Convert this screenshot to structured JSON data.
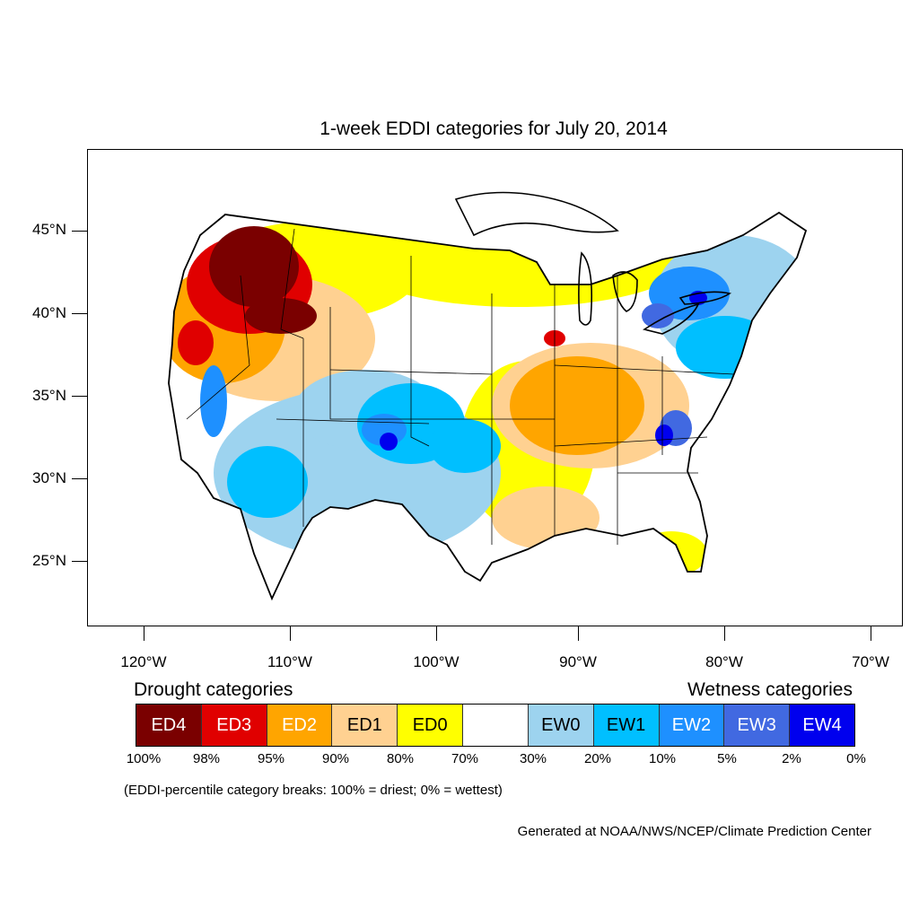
{
  "title": "1-week EDDI categories for July 20, 2014",
  "latitude_labels": [
    "45°N",
    "40°N",
    "35°N",
    "30°N",
    "25°N"
  ],
  "longitude_labels": [
    "120°W",
    "110°W",
    "100°W",
    "90°W",
    "80°W",
    "70°W"
  ],
  "legend": {
    "drought_heading": "Drought categories",
    "wetness_heading": "Wetness categories",
    "categories": [
      {
        "label": "ED4",
        "color": "#7a0000",
        "text_color": "#ffffff"
      },
      {
        "label": "ED3",
        "color": "#e00000",
        "text_color": "#ffffff"
      },
      {
        "label": "ED2",
        "color": "#ffa500",
        "text_color": "#ffffff"
      },
      {
        "label": "ED1",
        "color": "#ffd191",
        "text_color": "#000000"
      },
      {
        "label": "ED0",
        "color": "#ffff00",
        "text_color": "#000000"
      },
      {
        "label": "",
        "color": "#ffffff",
        "text_color": "#000000"
      },
      {
        "label": "EW0",
        "color": "#9dd3ef",
        "text_color": "#000000"
      },
      {
        "label": "EW1",
        "color": "#00bfff",
        "text_color": "#000000"
      },
      {
        "label": "EW2",
        "color": "#1e90ff",
        "text_color": "#ffffff"
      },
      {
        "label": "EW3",
        "color": "#4169e1",
        "text_color": "#ffffff"
      },
      {
        "label": "EW4",
        "color": "#0000ee",
        "text_color": "#ffffff"
      }
    ],
    "breaks": [
      "100%",
      "98%",
      "95%",
      "90%",
      "80%",
      "70%",
      "30%",
      "20%",
      "10%",
      "5%",
      "2%",
      "0%"
    ]
  },
  "note": "(EDDI-percentile category breaks: 100% = driest; 0% = wettest)",
  "credit": "Generated at NOAA/NWS/NCEP/Climate Prediction Center"
}
